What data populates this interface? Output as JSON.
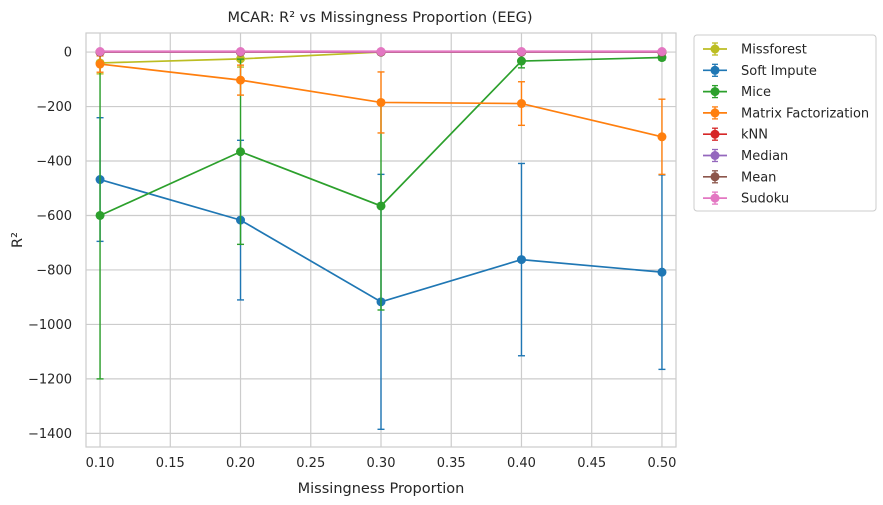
{
  "chart_data": {
    "type": "line",
    "title": "MCAR: R² vs Missingness Proportion (EEG)",
    "xlabel": "Missingness Proportion",
    "ylabel": "R²",
    "xlim": [
      0.09,
      0.51
    ],
    "ylim": [
      -1450,
      70
    ],
    "xticks": [
      0.1,
      0.15,
      0.2,
      0.25,
      0.3,
      0.35,
      0.4,
      0.45,
      0.5
    ],
    "xtick_labels": [
      "0.10",
      "0.15",
      "0.20",
      "0.25",
      "0.30",
      "0.35",
      "0.40",
      "0.45",
      "0.50"
    ],
    "yticks": [
      0,
      -200,
      -400,
      -600,
      -800,
      -1000,
      -1200,
      -1400
    ],
    "ytick_labels": [
      "0",
      "−200",
      "−400",
      "−600",
      "−800",
      "−1000",
      "−1200",
      "−1400"
    ],
    "grid": true,
    "legend": "outside-right",
    "x": [
      0.1,
      0.2,
      0.3,
      0.4,
      0.5
    ],
    "series": [
      {
        "name": "Missforest",
        "color": "#bcbd22",
        "values": [
          -40,
          -25,
          0,
          0,
          0
        ],
        "err": [
          40,
          30,
          5,
          5,
          5
        ]
      },
      {
        "name": "Soft Impute",
        "color": "#1f77b4",
        "values": [
          -468,
          -617,
          -917,
          -762,
          -808
        ],
        "err": [
          227,
          293,
          468,
          353,
          357
        ]
      },
      {
        "name": "Mice",
        "color": "#2ca02c",
        "values": [
          -600,
          -366,
          -565,
          -33,
          -20
        ],
        "err": [
          600,
          340,
          382,
          25,
          10
        ]
      },
      {
        "name": "Matrix Factorization",
        "color": "#ff7f0e",
        "values": [
          -44,
          -103,
          -185,
          -189,
          -311
        ],
        "err": [
          30,
          55,
          112,
          80,
          138
        ]
      },
      {
        "name": "kNN",
        "color": "#d62728",
        "values": [
          0,
          0,
          0,
          0,
          0
        ],
        "err": [
          3,
          3,
          3,
          3,
          3
        ]
      },
      {
        "name": "Median",
        "color": "#9467bd",
        "values": [
          0,
          0,
          0,
          0,
          0
        ],
        "err": [
          3,
          3,
          3,
          3,
          3
        ]
      },
      {
        "name": "Mean",
        "color": "#8c564b",
        "values": [
          0,
          0,
          0,
          0,
          0
        ],
        "err": [
          3,
          3,
          3,
          3,
          3
        ]
      },
      {
        "name": "Sudoku",
        "color": "#e377c2",
        "values": [
          2,
          2,
          2,
          2,
          2
        ],
        "err": [
          3,
          3,
          3,
          3,
          3
        ]
      }
    ]
  }
}
